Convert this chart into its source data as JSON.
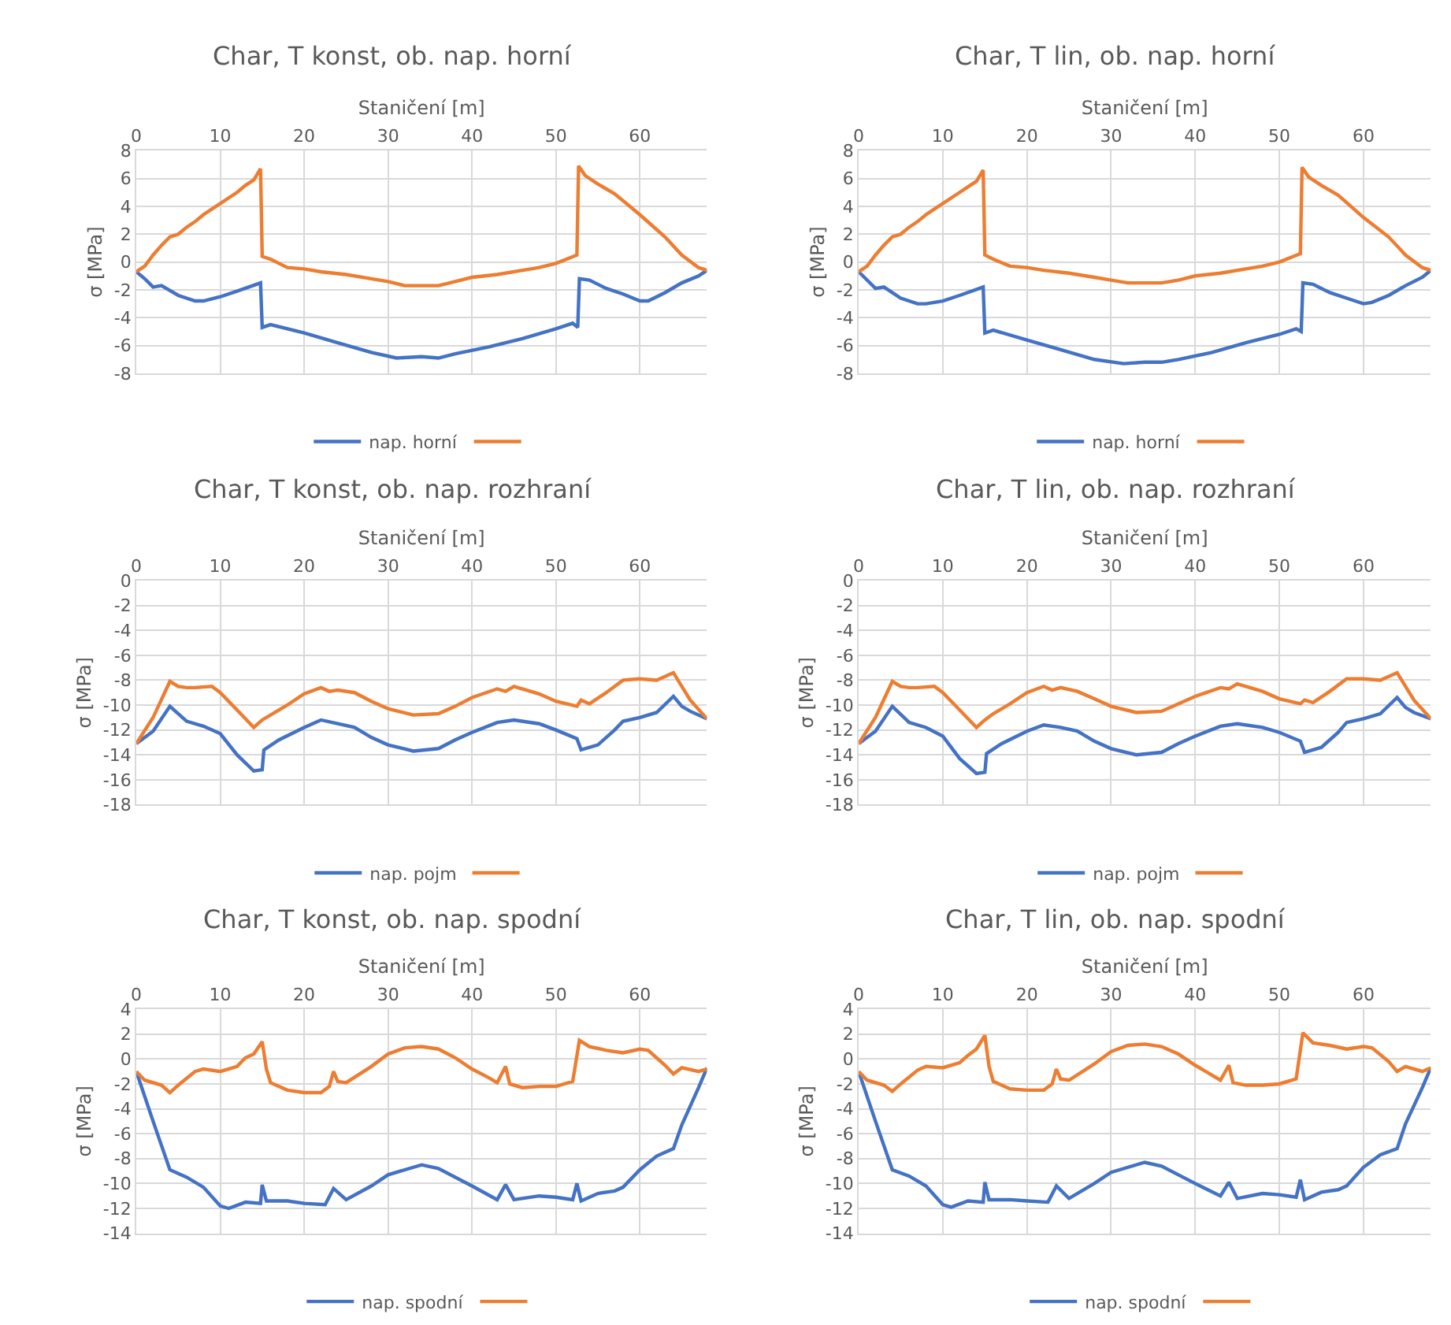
{
  "chart_data": [
    {
      "type": "line",
      "title": "Char, T konst, ob. nap. horní",
      "xlabel": "Staničení [m]",
      "ylabel": "σ [MPa]",
      "xlim": [
        0,
        68
      ],
      "xticks": [
        0,
        10,
        20,
        30,
        40,
        50,
        60
      ],
      "ylim": [
        -8,
        8
      ],
      "yticks": [
        -8,
        -6,
        -4,
        -2,
        0,
        2,
        4,
        6,
        8
      ],
      "grid": true,
      "legend": "bottom",
      "marker": "none",
      "line_style": "solid",
      "series": [
        {
          "name": "nap. horní",
          "color": "#4472c4",
          "x": [
            0,
            1,
            2,
            3,
            5,
            7,
            8,
            10,
            12,
            14.8,
            15,
            16,
            20,
            24,
            28,
            31,
            34,
            36,
            38,
            42,
            46,
            50,
            52,
            52.6,
            52.8,
            54,
            56,
            58,
            60,
            61,
            63,
            65,
            67,
            68
          ],
          "values": [
            -0.7,
            -1.2,
            -1.8,
            -1.7,
            -2.4,
            -2.8,
            -2.8,
            -2.5,
            -2.1,
            -1.5,
            -4.7,
            -4.5,
            -5.1,
            -5.8,
            -6.5,
            -6.9,
            -6.8,
            -6.9,
            -6.6,
            -6.1,
            -5.5,
            -4.8,
            -4.4,
            -4.7,
            -1.2,
            -1.3,
            -1.9,
            -2.3,
            -2.8,
            -2.8,
            -2.2,
            -1.5,
            -1.0,
            -0.6
          ]
        },
        {
          "color": "#ed7d31",
          "x": [
            0,
            1,
            2,
            3,
            4,
            5,
            6,
            7,
            8,
            9,
            10,
            11,
            12,
            13,
            14,
            14.8,
            15,
            16,
            18,
            20,
            22,
            25,
            28,
            30,
            32,
            36,
            38,
            40,
            43,
            46,
            48,
            50,
            52.5,
            52.7,
            53.5,
            55,
            57,
            60,
            63,
            65,
            67,
            68
          ],
          "values": [
            -0.7,
            -0.3,
            0.5,
            1.2,
            1.8,
            2.0,
            2.5,
            2.9,
            3.4,
            3.8,
            4.2,
            4.6,
            5.0,
            5.5,
            5.9,
            6.7,
            0.4,
            0.2,
            -0.4,
            -0.5,
            -0.7,
            -0.9,
            -1.2,
            -1.4,
            -1.7,
            -1.7,
            -1.4,
            -1.1,
            -0.9,
            -0.6,
            -0.4,
            -0.1,
            0.5,
            6.9,
            6.2,
            5.6,
            4.9,
            3.4,
            1.8,
            0.5,
            -0.4,
            -0.6
          ]
        }
      ]
    },
    {
      "type": "line",
      "title": "Char, T lin, ob. nap. horní",
      "xlabel": "Staničení [m]",
      "ylabel": "σ [MPa]",
      "xlim": [
        0,
        68
      ],
      "xticks": [
        0,
        10,
        20,
        30,
        40,
        50,
        60
      ],
      "ylim": [
        -8,
        8
      ],
      "yticks": [
        -8,
        -6,
        -4,
        -2,
        0,
        2,
        4,
        6,
        8
      ],
      "grid": true,
      "legend": "bottom",
      "marker": "none",
      "line_style": "solid",
      "series": [
        {
          "name": "nap. horní",
          "color": "#4472c4",
          "x": [
            0,
            1,
            2,
            3,
            5,
            7,
            8,
            10,
            12,
            14.8,
            15,
            16,
            20,
            24,
            28,
            31.5,
            34,
            36,
            38,
            42,
            46,
            50,
            52,
            52.6,
            52.8,
            54,
            56,
            58,
            60,
            61,
            63,
            65,
            67,
            68
          ],
          "values": [
            -0.7,
            -1.3,
            -1.9,
            -1.8,
            -2.6,
            -3.0,
            -3.0,
            -2.8,
            -2.4,
            -1.8,
            -5.1,
            -4.9,
            -5.6,
            -6.3,
            -7.0,
            -7.3,
            -7.2,
            -7.2,
            -7.0,
            -6.5,
            -5.8,
            -5.2,
            -4.8,
            -5.0,
            -1.5,
            -1.6,
            -2.2,
            -2.6,
            -3.0,
            -2.9,
            -2.4,
            -1.7,
            -1.1,
            -0.6
          ]
        },
        {
          "color": "#ed7d31",
          "x": [
            0,
            1,
            2,
            3,
            4,
            5,
            6,
            7,
            8,
            9,
            10,
            11,
            12,
            13,
            14,
            14.8,
            15,
            16,
            18,
            20,
            22,
            25,
            28,
            30,
            32,
            36,
            38,
            40,
            43,
            46,
            48,
            50,
            52.5,
            52.7,
            53.5,
            55,
            57,
            60,
            63,
            65,
            67,
            68
          ],
          "values": [
            -0.7,
            -0.3,
            0.5,
            1.2,
            1.8,
            2.0,
            2.5,
            2.9,
            3.4,
            3.8,
            4.2,
            4.6,
            5.0,
            5.4,
            5.8,
            6.6,
            0.5,
            0.2,
            -0.3,
            -0.4,
            -0.6,
            -0.8,
            -1.1,
            -1.3,
            -1.5,
            -1.5,
            -1.3,
            -1.0,
            -0.8,
            -0.5,
            -0.3,
            0.0,
            0.6,
            6.8,
            6.1,
            5.5,
            4.8,
            3.2,
            1.8,
            0.5,
            -0.4,
            -0.6
          ]
        }
      ]
    },
    {
      "type": "line",
      "title": "Char, T konst, ob. nap. rozhraní",
      "xlabel": "Staničení [m]",
      "ylabel": "σ [MPa]",
      "xlim": [
        0,
        68
      ],
      "xticks": [
        0,
        10,
        20,
        30,
        40,
        50,
        60
      ],
      "ylim": [
        -18,
        0
      ],
      "yticks": [
        -18,
        -16,
        -14,
        -12,
        -10,
        -8,
        -6,
        -4,
        -2,
        0
      ],
      "grid": true,
      "legend": "bottom",
      "marker": "none",
      "line_style": "solid",
      "series": [
        {
          "name": "nap. pojm",
          "color": "#4472c4",
          "x": [
            0,
            2,
            4,
            6,
            8,
            10,
            12,
            14,
            15,
            15.2,
            17,
            20,
            22,
            24,
            26,
            28,
            30,
            33,
            36,
            38,
            40,
            43,
            45,
            48,
            50,
            52.5,
            53,
            55,
            57,
            58,
            60,
            62,
            64,
            65,
            66,
            68
          ],
          "values": [
            -13.1,
            -12.1,
            -10.1,
            -11.3,
            -11.7,
            -12.3,
            -14.0,
            -15.3,
            -15.2,
            -13.6,
            -12.8,
            -11.8,
            -11.2,
            -11.5,
            -11.8,
            -12.6,
            -13.2,
            -13.7,
            -13.5,
            -12.8,
            -12.2,
            -11.4,
            -11.2,
            -11.5,
            -12.0,
            -12.7,
            -13.6,
            -13.2,
            -12.0,
            -11.3,
            -11.0,
            -10.6,
            -9.3,
            -10.1,
            -10.5,
            -11.1
          ]
        },
        {
          "color": "#ed7d31",
          "x": [
            0,
            2,
            4,
            5,
            6,
            7,
            9,
            10,
            12,
            14,
            15,
            16,
            18,
            20,
            22,
            23,
            24,
            26,
            28,
            30,
            33,
            36,
            38,
            40,
            43,
            44,
            45,
            48,
            50,
            52.5,
            53,
            54,
            56,
            58,
            60,
            62,
            64,
            66,
            68
          ],
          "values": [
            -13.1,
            -11.0,
            -8.1,
            -8.5,
            -8.6,
            -8.6,
            -8.5,
            -9.0,
            -10.4,
            -11.8,
            -11.2,
            -10.8,
            -10.0,
            -9.1,
            -8.6,
            -8.9,
            -8.8,
            -9.0,
            -9.7,
            -10.3,
            -10.8,
            -10.7,
            -10.1,
            -9.4,
            -8.7,
            -8.9,
            -8.5,
            -9.1,
            -9.7,
            -10.1,
            -9.6,
            -9.9,
            -9.0,
            -8.0,
            -7.9,
            -8.0,
            -7.4,
            -9.6,
            -11.1
          ]
        }
      ]
    },
    {
      "type": "line",
      "title": "Char, T lin, ob. nap. rozhraní",
      "xlabel": "Staničení [m]",
      "ylabel": "σ [MPa]",
      "xlim": [
        0,
        68
      ],
      "xticks": [
        0,
        10,
        20,
        30,
        40,
        50,
        60
      ],
      "ylim": [
        -18,
        0
      ],
      "yticks": [
        -18,
        -16,
        -14,
        -12,
        -10,
        -8,
        -6,
        -4,
        -2,
        0
      ],
      "grid": true,
      "legend": "bottom",
      "marker": "none",
      "line_style": "solid",
      "series": [
        {
          "name": "nap. pojm",
          "color": "#4472c4",
          "x": [
            0,
            2,
            4,
            6,
            8,
            10,
            12,
            14,
            15,
            15.2,
            17,
            20,
            22,
            24,
            26,
            28,
            30,
            33,
            36,
            38,
            40,
            43,
            45,
            48,
            50,
            52.5,
            53,
            55,
            57,
            58,
            60,
            62,
            64,
            65,
            66,
            68
          ],
          "values": [
            -13.1,
            -12.1,
            -10.1,
            -11.4,
            -11.8,
            -12.5,
            -14.3,
            -15.5,
            -15.4,
            -13.9,
            -13.1,
            -12.1,
            -11.6,
            -11.8,
            -12.1,
            -12.9,
            -13.5,
            -14.0,
            -13.8,
            -13.1,
            -12.5,
            -11.7,
            -11.5,
            -11.8,
            -12.2,
            -12.9,
            -13.8,
            -13.4,
            -12.2,
            -11.4,
            -11.1,
            -10.7,
            -9.4,
            -10.2,
            -10.6,
            -11.1
          ]
        },
        {
          "color": "#ed7d31",
          "x": [
            0,
            2,
            4,
            5,
            6,
            7,
            9,
            10,
            12,
            14,
            15,
            16,
            18,
            20,
            22,
            23,
            24,
            26,
            28,
            30,
            33,
            36,
            38,
            40,
            43,
            44,
            45,
            48,
            50,
            52.5,
            53,
            54,
            56,
            58,
            60,
            62,
            64,
            66,
            68
          ],
          "values": [
            -13.1,
            -11.0,
            -8.1,
            -8.5,
            -8.6,
            -8.6,
            -8.5,
            -9.0,
            -10.4,
            -11.8,
            -11.2,
            -10.7,
            -9.9,
            -9.0,
            -8.5,
            -8.8,
            -8.6,
            -8.9,
            -9.5,
            -10.1,
            -10.6,
            -10.5,
            -9.9,
            -9.3,
            -8.6,
            -8.7,
            -8.3,
            -8.9,
            -9.5,
            -9.9,
            -9.6,
            -9.8,
            -8.9,
            -7.9,
            -7.9,
            -8.0,
            -7.4,
            -9.6,
            -11.1
          ]
        }
      ]
    },
    {
      "type": "line",
      "title": "Char, T konst, ob. nap. spodní",
      "xlabel": "Staničení [m]",
      "ylabel": "σ [MPa]",
      "xlim": [
        0,
        68
      ],
      "xticks": [
        0,
        10,
        20,
        30,
        40,
        50,
        60
      ],
      "ylim": [
        -14,
        4
      ],
      "yticks": [
        -14,
        -12,
        -10,
        -8,
        -6,
        -4,
        -2,
        0,
        2,
        4
      ],
      "grid": true,
      "legend": "bottom",
      "marker": "none",
      "line_style": "solid",
      "series": [
        {
          "name": "nap. spodní",
          "color": "#4472c4",
          "x": [
            0,
            2,
            4,
            6,
            8,
            10,
            11,
            13,
            14.8,
            15,
            15.5,
            18,
            20,
            22.5,
            23.5,
            25,
            28,
            30,
            34,
            36,
            40,
            43,
            44,
            45,
            48,
            50,
            52,
            52.5,
            53,
            55,
            57,
            58,
            60,
            62,
            64,
            65,
            67,
            68
          ],
          "values": [
            -1.0,
            -5.0,
            -8.9,
            -9.5,
            -10.3,
            -11.8,
            -12.0,
            -11.5,
            -11.6,
            -10.1,
            -11.4,
            -11.4,
            -11.6,
            -11.7,
            -10.4,
            -11.3,
            -10.2,
            -9.3,
            -8.5,
            -8.8,
            -10.2,
            -11.3,
            -10.1,
            -11.3,
            -11.0,
            -11.1,
            -11.3,
            -10.0,
            -11.4,
            -10.8,
            -10.6,
            -10.3,
            -8.9,
            -7.8,
            -7.2,
            -5.3,
            -2.3,
            -0.7
          ]
        },
        {
          "color": "#ed7d31",
          "x": [
            0,
            1,
            3,
            4,
            5,
            7,
            8,
            10,
            12,
            13,
            14,
            15,
            15.5,
            16,
            18,
            20,
            22,
            23,
            23.5,
            24,
            25,
            28,
            30,
            32,
            34,
            36,
            38,
            40,
            42,
            43,
            44,
            44.5,
            46,
            48,
            50,
            52,
            52.8,
            54,
            56,
            58,
            60,
            61,
            63,
            64,
            65,
            67,
            68
          ],
          "values": [
            -1.0,
            -1.7,
            -2.1,
            -2.7,
            -2.1,
            -1.0,
            -0.8,
            -1.0,
            -0.6,
            0.1,
            0.4,
            1.4,
            -0.8,
            -1.9,
            -2.5,
            -2.7,
            -2.7,
            -2.2,
            -1.0,
            -1.8,
            -1.9,
            -0.6,
            0.4,
            0.9,
            1.0,
            0.8,
            0.1,
            -0.8,
            -1.5,
            -1.9,
            -0.6,
            -2.0,
            -2.3,
            -2.2,
            -2.2,
            -1.8,
            1.5,
            1.0,
            0.7,
            0.5,
            0.8,
            0.7,
            -0.5,
            -1.2,
            -0.7,
            -1.0,
            -0.8
          ]
        }
      ]
    },
    {
      "type": "line",
      "title": "Char, T lin, ob. nap. spodní",
      "xlabel": "Staničení [m]",
      "ylabel": "σ [MPa]",
      "xlim": [
        0,
        68
      ],
      "xticks": [
        0,
        10,
        20,
        30,
        40,
        50,
        60
      ],
      "ylim": [
        -14,
        4
      ],
      "yticks": [
        -14,
        -12,
        -10,
        -8,
        -6,
        -4,
        -2,
        0,
        2,
        4
      ],
      "grid": true,
      "legend": "bottom",
      "marker": "none",
      "line_style": "solid",
      "series": [
        {
          "name": "nap. spodní",
          "color": "#4472c4",
          "x": [
            0,
            2,
            4,
            6,
            8,
            10,
            11,
            13,
            14.8,
            15,
            15.5,
            18,
            20,
            22.5,
            23.5,
            25,
            28,
            30,
            34,
            36,
            40,
            43,
            44,
            45,
            48,
            50,
            52,
            52.5,
            53,
            55,
            57,
            58,
            60,
            62,
            64,
            65,
            67,
            68
          ],
          "values": [
            -1.0,
            -5.0,
            -8.9,
            -9.4,
            -10.2,
            -11.7,
            -11.9,
            -11.4,
            -11.5,
            -9.9,
            -11.3,
            -11.3,
            -11.4,
            -11.5,
            -10.2,
            -11.2,
            -10.0,
            -9.1,
            -8.3,
            -8.6,
            -10.0,
            -11.0,
            -9.9,
            -11.2,
            -10.8,
            -10.9,
            -11.1,
            -9.7,
            -11.3,
            -10.7,
            -10.5,
            -10.2,
            -8.7,
            -7.7,
            -7.2,
            -5.2,
            -2.3,
            -0.7
          ]
        },
        {
          "color": "#ed7d31",
          "x": [
            0,
            1,
            3,
            4,
            5,
            7,
            8,
            10,
            12,
            13,
            14,
            15,
            15.5,
            16,
            18,
            20,
            22,
            23,
            23.5,
            24,
            25,
            28,
            30,
            32,
            34,
            36,
            38,
            40,
            42,
            43,
            44,
            44.5,
            46,
            48,
            50,
            52,
            52.8,
            54,
            56,
            58,
            60,
            61,
            63,
            64,
            65,
            67,
            68
          ],
          "values": [
            -1.0,
            -1.7,
            -2.1,
            -2.6,
            -2.0,
            -0.9,
            -0.6,
            -0.7,
            -0.3,
            0.3,
            0.8,
            1.9,
            -0.6,
            -1.8,
            -2.4,
            -2.5,
            -2.5,
            -2.0,
            -0.8,
            -1.6,
            -1.7,
            -0.4,
            0.6,
            1.1,
            1.2,
            1.0,
            0.4,
            -0.5,
            -1.3,
            -1.7,
            -0.5,
            -1.9,
            -2.1,
            -2.1,
            -2.0,
            -1.6,
            2.1,
            1.3,
            1.1,
            0.8,
            1.0,
            0.9,
            -0.2,
            -1.0,
            -0.6,
            -1.0,
            -0.7
          ]
        }
      ]
    }
  ]
}
